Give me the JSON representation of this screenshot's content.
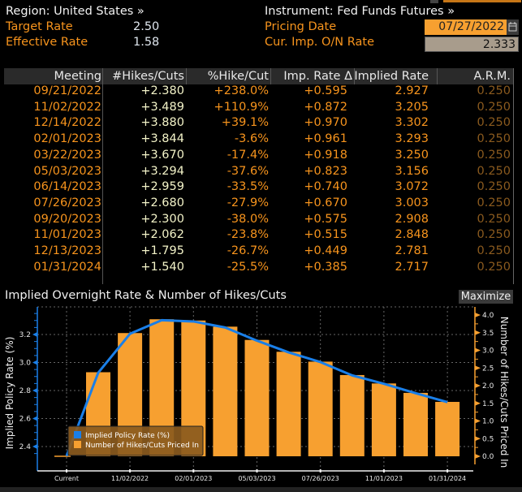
{
  "header": {
    "region_label": "Region: United States »",
    "instrument_label": "Instrument: Fed Funds Futures »",
    "target_rate_label": "Target Rate",
    "target_rate_value": "2.50",
    "effective_rate_label": "Effective Rate",
    "effective_rate_value": "1.58",
    "pricing_date_label": "Pricing Date",
    "pricing_date_value": "07/27/2022",
    "cur_imp_label": "Cur. Imp. O/N Rate",
    "cur_imp_value": "2.333"
  },
  "table": {
    "columns": [
      "Meeting",
      "#Hikes/Cuts",
      "%Hike/Cut",
      "Imp. Rate Δ",
      "Implied Rate",
      "A.R.M."
    ],
    "rows": [
      [
        "09/21/2022",
        "+2.380",
        "+238.0%",
        "+0.595",
        "2.927",
        "0.250"
      ],
      [
        "11/02/2022",
        "+3.489",
        "+110.9%",
        "+0.872",
        "3.205",
        "0.250"
      ],
      [
        "12/14/2022",
        "+3.880",
        "+39.1%",
        "+0.970",
        "3.302",
        "0.250"
      ],
      [
        "02/01/2023",
        "+3.844",
        "-3.6%",
        "+0.961",
        "3.293",
        "0.250"
      ],
      [
        "03/22/2023",
        "+3.670",
        "-17.4%",
        "+0.918",
        "3.250",
        "0.250"
      ],
      [
        "05/03/2023",
        "+3.294",
        "-37.6%",
        "+0.823",
        "3.156",
        "0.250"
      ],
      [
        "06/14/2023",
        "+2.959",
        "-33.5%",
        "+0.740",
        "3.072",
        "0.250"
      ],
      [
        "07/26/2023",
        "+2.680",
        "-27.9%",
        "+0.670",
        "3.003",
        "0.250"
      ],
      [
        "09/20/2023",
        "+2.300",
        "-38.0%",
        "+0.575",
        "2.908",
        "0.250"
      ],
      [
        "11/01/2023",
        "+2.062",
        "-23.8%",
        "+0.515",
        "2.848",
        "0.250"
      ],
      [
        "12/13/2023",
        "+1.795",
        "-26.7%",
        "+0.449",
        "2.781",
        "0.250"
      ],
      [
        "01/31/2024",
        "+1.540",
        "-25.5%",
        "+0.385",
        "2.717",
        "0.250"
      ]
    ]
  },
  "chart_panel": {
    "maximize_label": "Maximize"
  },
  "chart_data": {
    "type": "bar",
    "title": "Implied Overnight Rate & Number of Hikes/Cuts",
    "categories": [
      "Current",
      "09/21/2022",
      "11/02/2022",
      "12/14/2022",
      "02/01/2023",
      "03/22/2023",
      "05/03/2023",
      "06/14/2023",
      "07/26/2023",
      "09/20/2023",
      "11/01/2023",
      "12/13/2023",
      "01/31/2024"
    ],
    "x_tick_labels": [
      "Current",
      "11/02/2022",
      "02/01/2023",
      "05/03/2023",
      "07/26/2023",
      "11/01/2023",
      "01/31/2024"
    ],
    "series": [
      {
        "name": "Implied Policy Rate (%)",
        "kind": "line",
        "axis": "left",
        "color": "#1a7fe8",
        "values": [
          2.333,
          2.927,
          3.205,
          3.302,
          3.293,
          3.25,
          3.156,
          3.072,
          3.003,
          2.908,
          2.848,
          2.781,
          2.717
        ]
      },
      {
        "name": "Number of Hikes/Cuts Priced In",
        "kind": "bar",
        "axis": "right",
        "color": "#f7a030",
        "values": [
          0,
          2.38,
          3.489,
          3.88,
          3.844,
          3.67,
          3.294,
          2.959,
          2.68,
          2.3,
          2.062,
          1.795,
          1.54
        ]
      }
    ],
    "ylabel": "Implied Policy Rate (%)",
    "y2label": "Number of Hikes/Cuts Priced In",
    "ylim": [
      2.3,
      3.4
    ],
    "y2lim": [
      -0.3,
      4.2
    ],
    "yticks": [
      "3.2",
      "3.0",
      "2.8",
      "2.6",
      "2.4"
    ],
    "y2ticks": [
      "4.0",
      "3.5",
      "3.0",
      "2.5",
      "2.0",
      "1.5",
      "1.0",
      "0.5",
      "0.0"
    ],
    "grid": true,
    "legend": "bottom-left"
  }
}
